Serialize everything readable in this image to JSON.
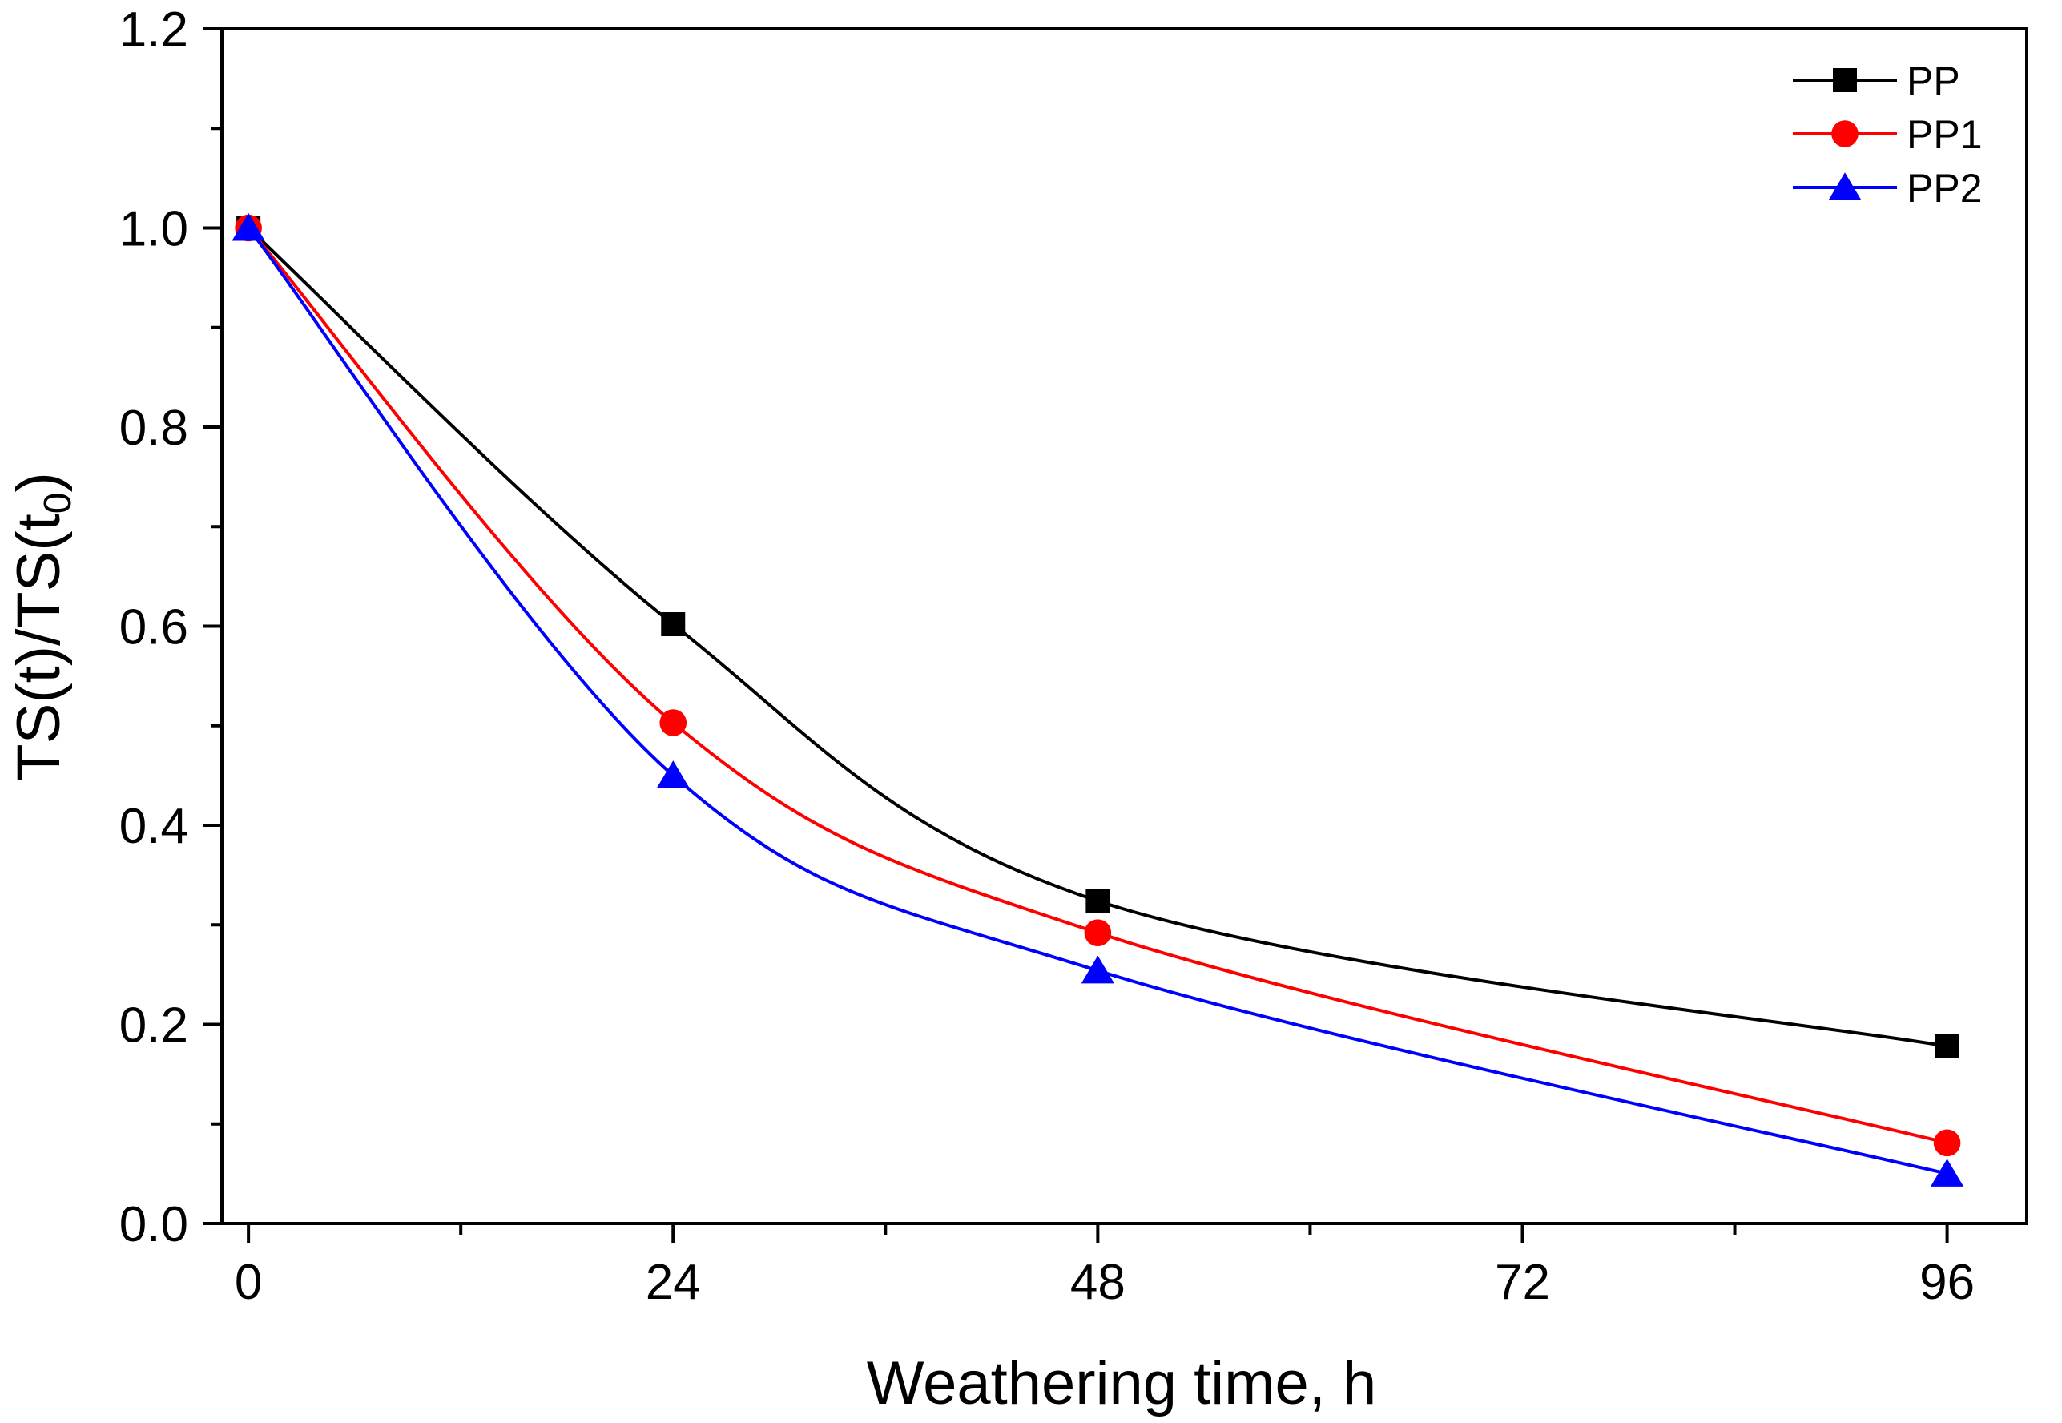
{
  "chart_data": {
    "type": "line",
    "title": "",
    "xlabel": "Weathering time, h",
    "ylabel": {
      "main": "TS(t)/TS(t",
      "subscript": "0",
      "close": ")"
    },
    "xlim": [
      -1.5,
      100.5
    ],
    "ylim": [
      0.0,
      1.2
    ],
    "x": [
      0,
      24,
      48,
      96
    ],
    "xticks": [
      0,
      24,
      48,
      72,
      96
    ],
    "xtick_labels": [
      "0",
      "24",
      "48",
      "72",
      "96"
    ],
    "yticks": [
      0.0,
      0.2,
      0.4,
      0.6,
      0.8,
      1.0,
      1.2
    ],
    "ytick_labels": [
      "0.0",
      "0.2",
      "0.4",
      "0.6",
      "0.8",
      "1.0",
      "1.2"
    ],
    "grid": false,
    "legend_position": "top-right",
    "series": [
      {
        "name": "PP",
        "marker": "square",
        "color": "#000000",
        "values": [
          1.0,
          0.602,
          0.324,
          0.178
        ]
      },
      {
        "name": "PP1",
        "marker": "circle",
        "color": "#ff0000",
        "values": [
          1.0,
          0.503,
          0.292,
          0.081
        ]
      },
      {
        "name": "PP2",
        "marker": "triangle",
        "color": "#0000ff",
        "values": [
          1.0,
          0.45,
          0.254,
          0.05
        ]
      }
    ]
  }
}
